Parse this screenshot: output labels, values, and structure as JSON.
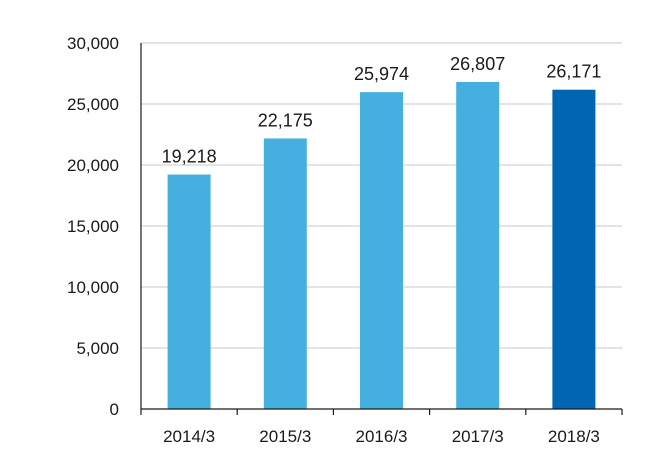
{
  "chart_data": {
    "type": "bar",
    "title": "",
    "xlabel": "",
    "ylabel": "",
    "categories": [
      "2014/3",
      "2015/3",
      "2016/3",
      "2017/3",
      "2018/3"
    ],
    "values": [
      19218,
      22175,
      25974,
      26807,
      26171
    ],
    "value_labels": [
      "19,218",
      "22,175",
      "25,974",
      "26,807",
      "26,171"
    ],
    "ylim": [
      0,
      30000
    ],
    "yticks": [
      0,
      5000,
      10000,
      15000,
      20000,
      25000,
      30000
    ],
    "ytick_labels": [
      "0",
      "5,000",
      "10,000",
      "15,000",
      "20,000",
      "25,000",
      "30,000"
    ],
    "grid": true,
    "legend": "none",
    "colors": {
      "bar": "#45b0df",
      "highlight_bar": "#0065b2",
      "grid": "#c8c8c8",
      "axis": "#1a1a1a"
    },
    "highlight_index": 4
  }
}
